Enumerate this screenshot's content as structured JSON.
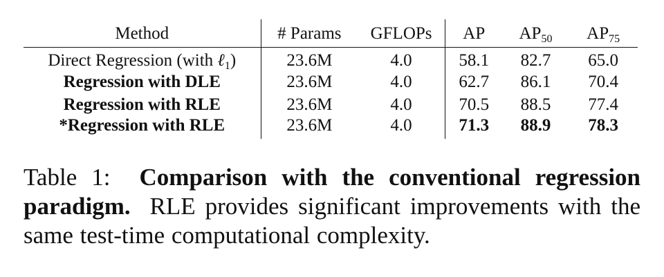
{
  "table": {
    "headers": {
      "method": "Method",
      "params": "# Params",
      "gflops": "GFLOPs",
      "ap": "AP",
      "ap50_base": "AP",
      "ap50_sub": "50",
      "ap75_base": "AP",
      "ap75_sub": "75"
    },
    "rows": [
      {
        "method_prefix": "Direct Regression (with ",
        "method_symbol": "ℓ",
        "method_sub": "1",
        "method_suffix": ")",
        "params": "23.6M",
        "gflops": "4.0",
        "ap": "58.1",
        "ap50": "82.7",
        "ap75": "65.0"
      },
      {
        "method": "Regression with DLE",
        "params": "23.6M",
        "gflops": "4.0",
        "ap": "62.7",
        "ap50": "86.1",
        "ap75": "70.4"
      },
      {
        "method": "Regression with RLE",
        "params": "23.6M",
        "gflops": "4.0",
        "ap": "70.5",
        "ap50": "88.5",
        "ap75": "77.4"
      },
      {
        "method": "*Regression with RLE",
        "params": "23.6M",
        "gflops": "4.0",
        "ap": "71.3",
        "ap50": "88.9",
        "ap75": "78.3"
      }
    ]
  },
  "caption": {
    "label": "Table 1:",
    "title": "Comparison with the conventional regression paradigm.",
    "text": "RLE provides significant improvements with the same test-time computational complexity."
  }
}
